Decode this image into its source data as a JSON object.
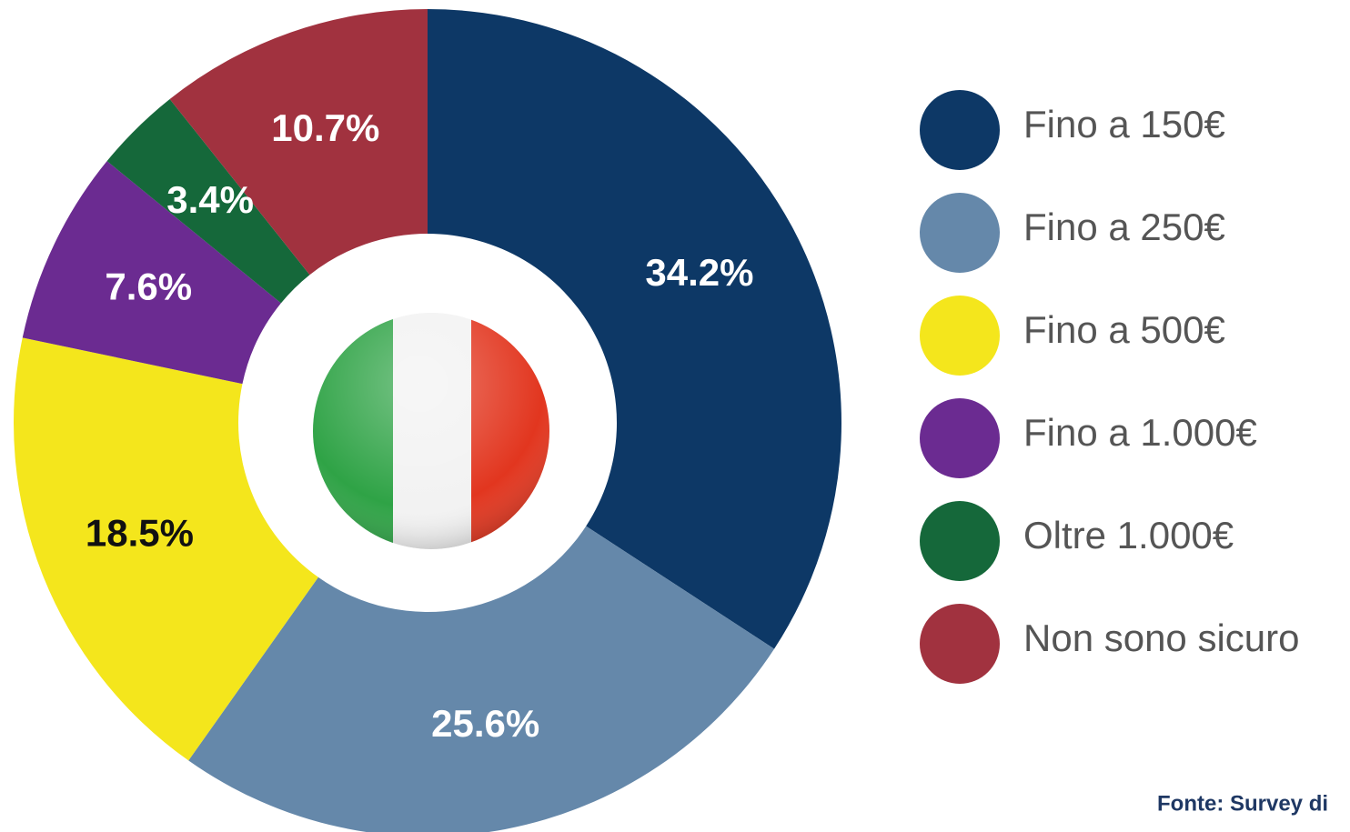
{
  "chart_data": {
    "type": "donut",
    "categories": [
      "Fino a 150€",
      "Fino a 250€",
      "Fino a 500€",
      "Fino a 1.000€",
      "Oltre 1.000€",
      "Non sono sicuro"
    ],
    "values": [
      34.2,
      25.6,
      18.5,
      7.6,
      3.4,
      10.7
    ],
    "value_labels": [
      "34.2%",
      "25.6%",
      "18.5%",
      "7.6%",
      "3.4%",
      "10.7%"
    ],
    "colors": [
      "#0d3866",
      "#6588aa",
      "#f4e61c",
      "#6b2b91",
      "#15683a",
      "#a1323f"
    ],
    "label_colors": [
      "#ffffff",
      "#ffffff",
      "#111111",
      "#ffffff",
      "#ffffff",
      "#ffffff"
    ],
    "source": "Fonte: Survey di"
  }
}
